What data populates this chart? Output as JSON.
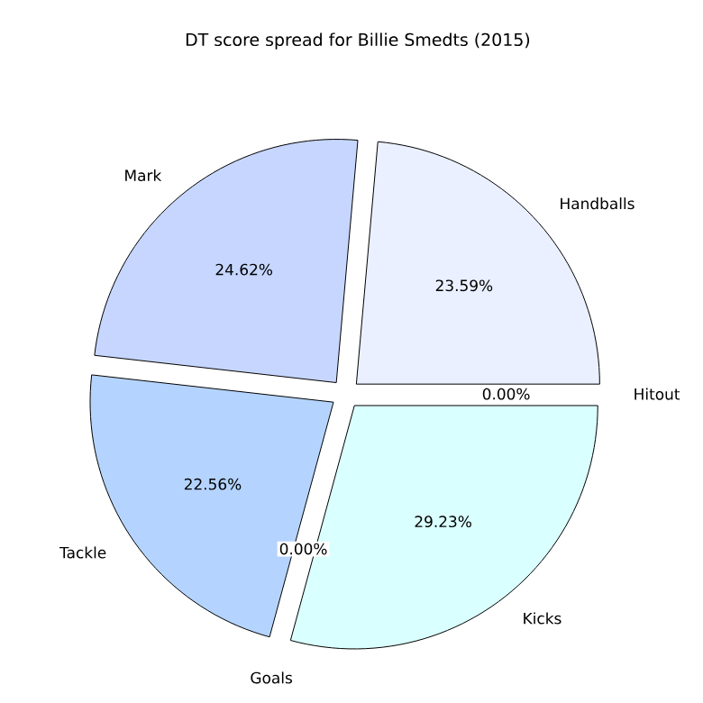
{
  "chart_data": {
    "type": "pie",
    "title": "DT score spread for Billie Smedts (2015)",
    "categories": [
      "Handballs",
      "Mark",
      "Tackle",
      "Goals",
      "Kicks",
      "Hitout"
    ],
    "values": [
      23.59,
      24.62,
      22.56,
      0.0,
      29.23,
      0.0
    ],
    "colors": [
      "#eaf0ff",
      "#c6d6ff",
      "#b4d4ff",
      "#c8e0ff",
      "#daffff",
      "#e0f0ff"
    ],
    "value_labels": [
      "23.59%",
      "24.62%",
      "22.56%",
      "0.00%",
      "29.23%",
      "0.00%"
    ]
  }
}
